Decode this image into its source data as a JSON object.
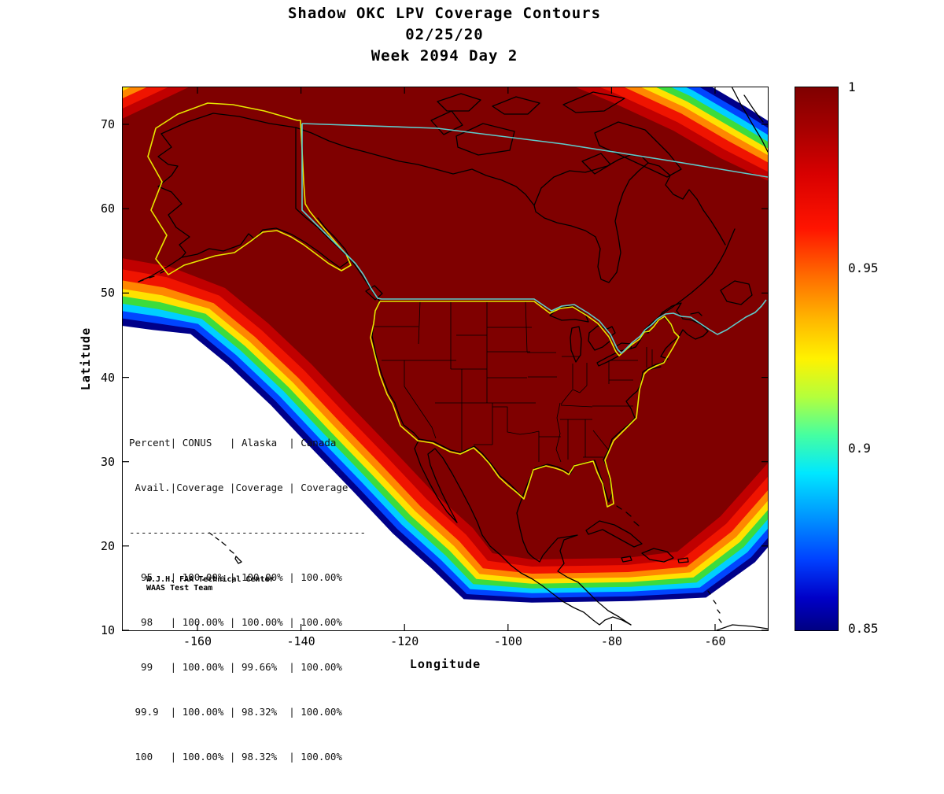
{
  "title": {
    "line1": "Shadow OKC LPV Coverage Contours",
    "line2": "02/25/20",
    "line3": "Week 2094 Day 2"
  },
  "chart_data": {
    "type": "contour-map",
    "description": "WAAS Shadow OKC LPV coverage probability filled contours over North America with CONUS/Alaska yellow outlines and Canada teal outline",
    "xlabel": "Longitude",
    "ylabel": "Latitude",
    "xlim": [
      -175,
      -50
    ],
    "ylim": [
      10,
      75
    ],
    "x_ticks": [
      "-160",
      "-140",
      "-120",
      "-100",
      "-80",
      "-60"
    ],
    "y_ticks": [
      "70",
      "60",
      "50",
      "40",
      "30",
      "20",
      "10"
    ],
    "colorbar": {
      "min": 0.85,
      "max": 1,
      "tick_labels": [
        "1",
        "0.95",
        "0.9",
        "0.85"
      ],
      "tick_values": [
        1,
        0.95,
        0.9,
        0.85
      ]
    },
    "contour_bands": [
      {
        "level": 0.85,
        "color": "#000089",
        "offset": 73
      },
      {
        "level": 0.87,
        "color": "#0045ff",
        "offset": 65
      },
      {
        "level": 0.89,
        "color": "#00cfff",
        "offset": 57
      },
      {
        "level": 0.91,
        "color": "#3cdc3c",
        "offset": 49
      },
      {
        "level": 0.93,
        "color": "#ffe100",
        "offset": 41
      },
      {
        "level": 0.95,
        "color": "#ff8700",
        "offset": 33
      },
      {
        "level": 0.97,
        "color": "#f01400",
        "offset": 24
      },
      {
        "level": 0.99,
        "color": "#c00000",
        "offset": 12
      },
      {
        "level": 1.0,
        "color": "#7f0000",
        "offset": 0
      }
    ],
    "outline_colors": {
      "conus_alaska": "#e8e800",
      "canada": "#5fcbcb"
    },
    "coverage_table": {
      "columns": [
        "Percent Avail.",
        "CONUS Coverage",
        "Alaska Coverage",
        "Canada Coverage"
      ],
      "rows": [
        {
          "avail": "95",
          "conus": "100.00%",
          "alaska": "100.00%",
          "canada": "100.00%"
        },
        {
          "avail": "98",
          "conus": "100.00%",
          "alaska": "100.00%",
          "canada": "100.00%"
        },
        {
          "avail": "99",
          "conus": "100.00%",
          "alaska": "99.66%",
          "canada": "100.00%"
        },
        {
          "avail": "99.9",
          "conus": "100.00%",
          "alaska": "98.32%",
          "canada": "100.00%"
        },
        {
          "avail": "100",
          "conus": "100.00%",
          "alaska": "98.32%",
          "canada": "100.00%"
        }
      ]
    },
    "table_lines": [
      "Percent| CONUS   | Alaska  | Canada",
      " Avail.|Coverage |Coverage | Coverage",
      "----------------------------------------",
      "  95   | 100.00% | 100.00% | 100.00%",
      "  98   | 100.00% | 100.00% | 100.00%",
      "  99   | 100.00% | 99.66%  | 100.00%",
      " 99.9  | 100.00% | 98.32%  | 100.00%",
      " 100   | 100.00% | 98.32%  | 100.00%"
    ],
    "credit_line1": "W.J.H. FAA Technical Center",
    "credit_line2": "WAAS Test Team"
  }
}
